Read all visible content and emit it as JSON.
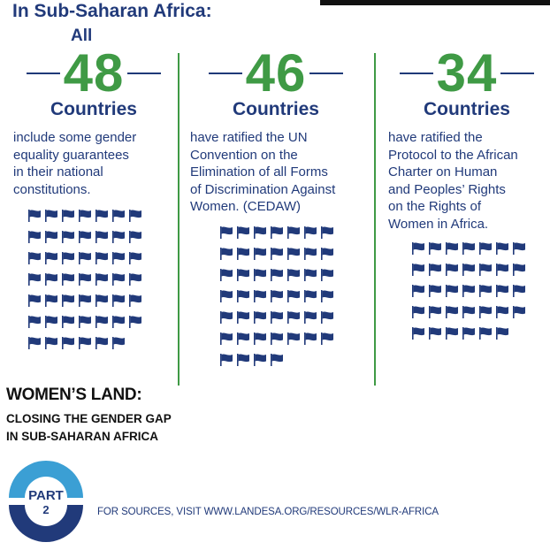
{
  "header": {
    "title": "In Sub-Saharan Africa:",
    "prefix": "All"
  },
  "stats": [
    {
      "number": "48",
      "label": "Countries",
      "lines": [
        "include some gender",
        "equality guarantees",
        "in their national",
        "constitutions."
      ],
      "flag_count": 48
    },
    {
      "number": "46",
      "label": "Countries",
      "lines": [
        "have ratified the UN",
        "Convention on the",
        "Elimination of all Forms",
        "of Discrimination Against",
        "Women. (CEDAW)"
      ],
      "flag_count": 46
    },
    {
      "number": "34",
      "label": "Countries",
      "lines": [
        "have ratified the",
        "Protocol to the African",
        "Charter on Human",
        "and Peoples’ Rights",
        "on the Rights of",
        "Women in Africa."
      ],
      "flag_count": 34
    }
  ],
  "footer": {
    "title_line1": "WOMEN’S LAND:",
    "title_line2a": "CLOSING THE GENDER GAP",
    "title_line2b": "IN SUB-SAHARAN AFRICA",
    "badge_word": "PART",
    "badge_number": "2",
    "sources": "FOR SOURCES, VISIT WWW.LANDESA.ORG/RESOURCES/WLR-AFRICA"
  },
  "colors": {
    "navy": "#213a7a",
    "green": "#3f9a45",
    "badge_light": "#3b9fd4"
  },
  "icons": {
    "flag": "flag-icon"
  }
}
